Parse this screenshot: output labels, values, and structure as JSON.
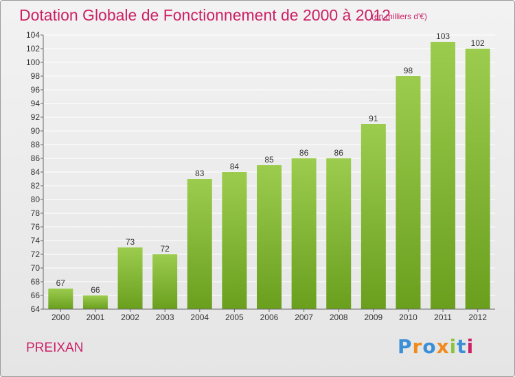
{
  "header": {
    "title": "Dotation Globale de Fonctionnement de 2000 à 2012",
    "unit": "(en milliers d'€)"
  },
  "commune": "PREIXAN",
  "logo": {
    "letters": [
      "P",
      "r",
      "o",
      "x",
      "i",
      "t",
      "i"
    ]
  },
  "colors": {
    "title": "#cc2166",
    "bar_top": "#9ccc4e",
    "bar_bottom": "#6a9f1e",
    "grid": "#ffffff"
  },
  "chart_data": {
    "type": "bar",
    "title": "Dotation Globale de Fonctionnement de 2000 à 2012",
    "categories": [
      "2000",
      "2001",
      "2002",
      "2003",
      "2004",
      "2005",
      "2006",
      "2007",
      "2008",
      "2009",
      "2010",
      "2011",
      "2012"
    ],
    "values": [
      67,
      66,
      73,
      72,
      83,
      84,
      85,
      86,
      86,
      91,
      98,
      103,
      102
    ],
    "ylim": [
      64,
      104
    ],
    "yticks": [
      64,
      66,
      68,
      70,
      72,
      74,
      76,
      78,
      80,
      82,
      84,
      86,
      88,
      90,
      92,
      94,
      96,
      98,
      100,
      102,
      104
    ],
    "grid": true,
    "legend": "none"
  }
}
